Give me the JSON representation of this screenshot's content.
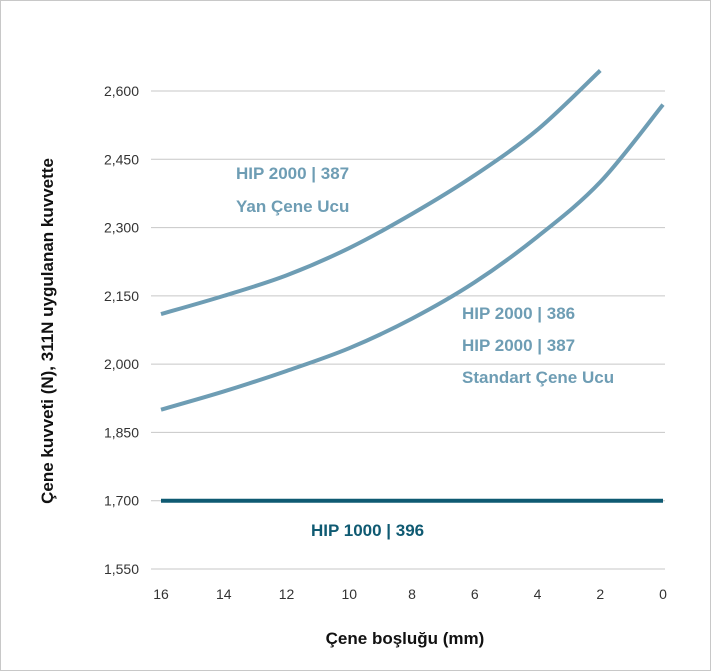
{
  "chart_data": {
    "type": "line",
    "xlabel": "Çene boşluğu (mm)",
    "ylabel": "Çene kuvveti (N),  311N uygulanan kuvvette",
    "xlim": [
      16,
      0
    ],
    "ylim": [
      1550,
      2650
    ],
    "x_reversed": true,
    "x_ticks": [
      16,
      14,
      12,
      10,
      8,
      6,
      4,
      2,
      0
    ],
    "x_tick_labels": [
      "16",
      "14",
      "12",
      "10",
      "8",
      "6",
      "4",
      "2",
      "0"
    ],
    "y_ticks": [
      1550,
      1700,
      1850,
      2000,
      2150,
      2300,
      2450,
      2600
    ],
    "y_tick_labels": [
      "1,550",
      "1,700",
      "1,850",
      "2,000",
      "2,150",
      "2,300",
      "2,450",
      "2,600"
    ],
    "grid": true,
    "series": [
      {
        "color": "#6e9db4",
        "x": [
          16,
          14,
          12,
          10,
          8,
          6,
          4,
          2
        ],
        "y": [
          2110,
          2150,
          2195,
          2255,
          2330,
          2415,
          2515,
          2645
        ]
      },
      {
        "color": "#6e9db4",
        "x": [
          16,
          14,
          12,
          10,
          8,
          6,
          4,
          2,
          0
        ],
        "y": [
          1900,
          1940,
          1985,
          2035,
          2100,
          2180,
          2280,
          2400,
          2570
        ]
      },
      {
        "color": "#0f5a72",
        "x": [
          16,
          0
        ],
        "y": [
          1700,
          1700
        ]
      }
    ],
    "annotations": [
      {
        "lines": [
          "HIP 2000 | 387",
          "Yan Çene Ucu"
        ],
        "color": "#6e9db4"
      },
      {
        "lines": [
          "HIP 2000 | 386",
          "HIP 2000 | 387",
          "Standart Çene Ucu"
        ],
        "color": "#6e9db4"
      },
      {
        "lines": [
          "HIP 1000 | 396"
        ],
        "color": "#0f5a72"
      }
    ]
  }
}
